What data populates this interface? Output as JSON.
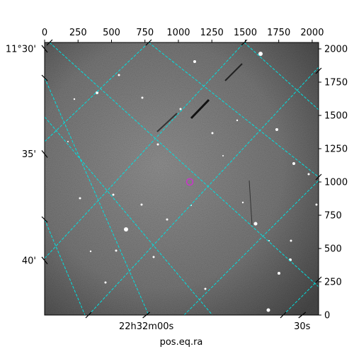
{
  "chart_data": {
    "type": "image",
    "title": "",
    "xlabel": "pos.eq.ra",
    "ylabel": "",
    "pixel_axes": {
      "x_range": [
        0,
        2048
      ],
      "y_range": [
        0,
        2048
      ],
      "x_ticks": [
        0,
        250,
        500,
        750,
        1000,
        1250,
        1500,
        1750,
        2000
      ],
      "y_ticks": [
        0,
        250,
        500,
        750,
        1000,
        1250,
        1500,
        1750,
        2000
      ]
    },
    "world_axes": {
      "dec_labels": [
        {
          "text": "11°30'",
          "y_pix": 2000
        },
        {
          "text": "35'",
          "y_pix": 1210
        },
        {
          "text": "40'",
          "y_pix": 410
        }
      ],
      "ra_labels": [
        {
          "text": "22h32m00s",
          "x_pix": 760
        },
        {
          "text": "30s",
          "x_pix": 1925
        }
      ]
    },
    "grid": true,
    "grid_color": "#00e0e0",
    "marker": {
      "type": "circle",
      "x_pix": 1085,
      "y_pix": 1000,
      "color": "#cc33cc"
    },
    "colormap": "grayscale"
  }
}
